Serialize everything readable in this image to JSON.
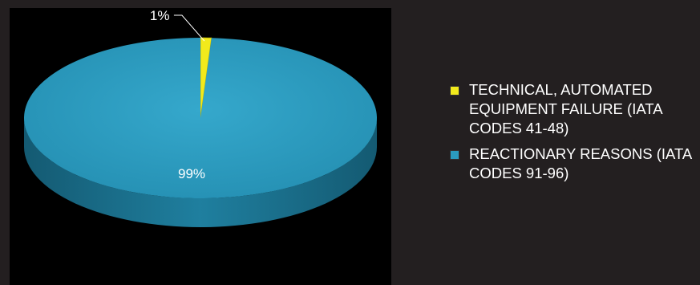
{
  "chart_data": {
    "type": "pie",
    "title": "",
    "categories": [
      "TECHNICAL, AUTOMATED EQUIPMENT FAILURE (IATA CODES 41-48)",
      "REACTIONARY REASONS (IATA CODES 91-96)"
    ],
    "values": [
      1,
      99
    ],
    "data_labels": [
      "1%",
      "99%"
    ],
    "colors": [
      "#f2ea1c",
      "#2b9cbf"
    ],
    "legend_position": "right",
    "style": "3d"
  },
  "legend": {
    "items": [
      {
        "label": "TECHNICAL, AUTOMATED EQUIPMENT FAILURE (IATA CODES 41-48)",
        "color": "#f2ea1c"
      },
      {
        "label": "REACTIONARY REASONS (IATA CODES 91-96)",
        "color": "#2b9cbf"
      }
    ]
  }
}
